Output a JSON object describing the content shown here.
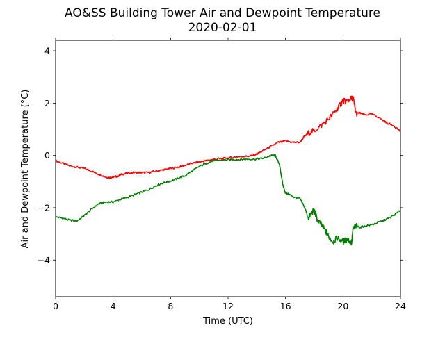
{
  "chart_data": {
    "type": "line",
    "title": "AO&SS Building Tower Air and Dewpoint Temperature",
    "subtitle": "2020-02-01",
    "xlabel": "Time (UTC)",
    "ylabel": "Air and Dewpoint Temperature (°C)",
    "xlim": [
      0,
      24
    ],
    "ylim": [
      -5.4,
      4.4
    ],
    "xticks": [
      0,
      4,
      8,
      12,
      16,
      20,
      24
    ],
    "yticks": [
      -4,
      -2,
      0,
      2,
      4
    ],
    "grid": false,
    "series": [
      {
        "color": "#ff0000",
        "x": [
          0,
          0.5,
          1,
          1.5,
          2,
          2.5,
          3,
          3.5,
          3.8,
          4,
          4.3,
          4.6,
          5,
          5.5,
          6,
          6.5,
          7,
          7.5,
          8,
          8.5,
          9,
          9.5,
          10,
          10.5,
          11,
          11.5,
          12,
          12.5,
          13,
          13.5,
          14,
          14.5,
          15,
          15.5,
          16,
          16.5,
          17,
          17.3,
          17.6,
          18,
          18.5,
          19,
          19.5,
          19.8,
          20,
          20.2,
          20.5,
          20.7,
          20.9,
          21.2,
          21.5,
          22,
          22.5,
          23,
          23.5,
          24
        ],
        "y": [
          -0.2,
          -0.3,
          -0.4,
          -0.45,
          -0.5,
          -0.6,
          -0.72,
          -0.83,
          -0.85,
          -0.82,
          -0.8,
          -0.72,
          -0.68,
          -0.65,
          -0.66,
          -0.65,
          -0.6,
          -0.55,
          -0.5,
          -0.45,
          -0.38,
          -0.3,
          -0.25,
          -0.2,
          -0.15,
          -0.12,
          -0.1,
          -0.06,
          -0.04,
          -0.03,
          0.05,
          0.2,
          0.35,
          0.5,
          0.55,
          0.5,
          0.5,
          0.72,
          0.85,
          0.95,
          1.15,
          1.4,
          1.7,
          1.95,
          2.1,
          2.05,
          2.15,
          2.2,
          1.6,
          1.62,
          1.55,
          1.58,
          1.45,
          1.25,
          1.15,
          0.92
        ]
      },
      {
        "color": "#008000",
        "x": [
          0,
          0.5,
          1,
          1.5,
          2,
          2.5,
          3,
          3.5,
          4,
          4.5,
          5,
          5.5,
          6,
          6.5,
          7,
          7.5,
          8,
          8.5,
          9,
          9.5,
          10,
          10.5,
          11,
          11.5,
          12,
          12.5,
          13,
          13.5,
          14,
          14.5,
          15,
          15.3,
          15.6,
          15.8,
          16,
          16.3,
          16.6,
          17,
          17.3,
          17.6,
          17.8,
          18,
          18.2,
          18.5,
          18.8,
          19,
          19.3,
          19.6,
          20,
          20.3,
          20.6,
          20.7,
          20.9,
          21.2,
          21.5,
          22,
          22.5,
          23,
          23.5,
          24
        ],
        "y": [
          -2.35,
          -2.4,
          -2.48,
          -2.5,
          -2.3,
          -2.05,
          -1.85,
          -1.78,
          -1.78,
          -1.68,
          -1.6,
          -1.5,
          -1.4,
          -1.3,
          -1.15,
          -1.05,
          -0.98,
          -0.88,
          -0.78,
          -0.6,
          -0.42,
          -0.3,
          -0.2,
          -0.18,
          -0.17,
          -0.16,
          -0.15,
          -0.14,
          -0.14,
          -0.1,
          0.0,
          0.0,
          -0.4,
          -1.1,
          -1.45,
          -1.5,
          -1.6,
          -1.65,
          -1.95,
          -2.4,
          -2.2,
          -2.1,
          -2.45,
          -2.65,
          -2.9,
          -3.1,
          -3.3,
          -3.15,
          -3.3,
          -3.2,
          -3.35,
          -2.8,
          -2.7,
          -2.75,
          -2.7,
          -2.65,
          -2.55,
          -2.45,
          -2.3,
          -2.1
        ]
      }
    ]
  }
}
